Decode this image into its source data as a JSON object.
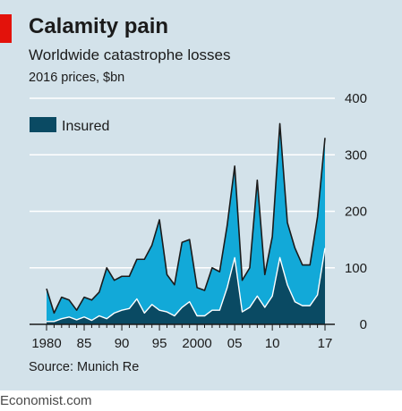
{
  "header": {
    "title": "Calamity pain",
    "subtitle": "Worldwide catastrophe losses",
    "units": "2016 prices, $bn"
  },
  "footer": {
    "source": "Source: Munich Re",
    "brand": "Economist.com"
  },
  "colors": {
    "background": "#d3e2ea",
    "overall": "#12a9d8",
    "insured": "#0a4a63",
    "accent": "#e3120b",
    "grid": "#ffffff",
    "axis": "#1b1b1b"
  },
  "chart_data": {
    "type": "area",
    "title": "Calamity pain",
    "subtitle": "Worldwide catastrophe losses",
    "ylabel": "2016 prices, $bn",
    "ylim": [
      0,
      400
    ],
    "yticks": [
      0,
      100,
      200,
      300,
      400
    ],
    "xlim": [
      1980,
      2017
    ],
    "xtick_labels": [
      {
        "x": 1980,
        "label": "1980"
      },
      {
        "x": 1985,
        "label": "85"
      },
      {
        "x": 1990,
        "label": "90"
      },
      {
        "x": 1995,
        "label": "95"
      },
      {
        "x": 2000,
        "label": "2000"
      },
      {
        "x": 2005,
        "label": "05"
      },
      {
        "x": 2010,
        "label": "10"
      },
      {
        "x": 2017,
        "label": "17"
      }
    ],
    "y_axis_side": "right",
    "grid": true,
    "legend": {
      "position": "top-left",
      "entries": [
        "Insured"
      ]
    },
    "x": [
      1980,
      1981,
      1982,
      1983,
      1984,
      1985,
      1986,
      1987,
      1988,
      1989,
      1990,
      1991,
      1992,
      1993,
      1994,
      1995,
      1996,
      1997,
      1998,
      1999,
      2000,
      2001,
      2002,
      2003,
      2004,
      2005,
      2006,
      2007,
      2008,
      2009,
      2010,
      2011,
      2012,
      2013,
      2014,
      2015,
      2016,
      2017
    ],
    "series": [
      {
        "name": "",
        "values": [
          63,
          20,
          48,
          43,
          25,
          48,
          43,
          57,
          100,
          78,
          85,
          85,
          115,
          115,
          140,
          185,
          88,
          70,
          145,
          150,
          65,
          60,
          100,
          93,
          175,
          280,
          78,
          100,
          255,
          88,
          155,
          355,
          180,
          135,
          105,
          105,
          190,
          330
        ]
      },
      {
        "name": "Insured",
        "values": [
          5,
          5,
          10,
          13,
          8,
          13,
          7,
          15,
          10,
          20,
          25,
          28,
          45,
          20,
          35,
          25,
          22,
          15,
          30,
          40,
          15,
          15,
          25,
          25,
          65,
          118,
          22,
          30,
          50,
          30,
          50,
          118,
          70,
          40,
          33,
          33,
          52,
          135
        ]
      }
    ]
  }
}
